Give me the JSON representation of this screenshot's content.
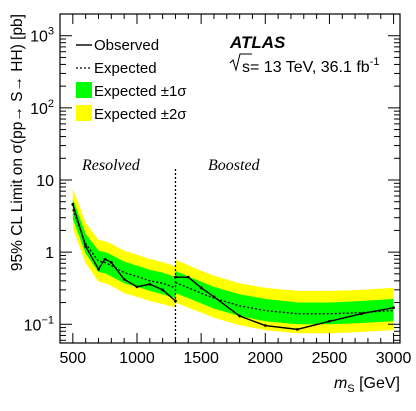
{
  "chart_data": {
    "type": "line",
    "xlabel": "m",
    "xlabel_sub": "S",
    "xlabel_unit": " [GeV]",
    "ylabel": "95% CL Limit on σ(pp→ S→ HH) [pb]",
    "xlim": [
      400,
      3050
    ],
    "ylim": [
      0.055,
      2000
    ],
    "y_scale": "log",
    "x_ticks": [
      500,
      1000,
      1500,
      2000,
      2500,
      3000
    ],
    "y_ticks": [
      {
        "value": 0.1,
        "base": "10",
        "exp": "−1"
      },
      {
        "value": 1,
        "label": "1"
      },
      {
        "value": 10,
        "label": "10"
      },
      {
        "value": 100,
        "base": "10",
        "exp": "2"
      },
      {
        "value": 1000,
        "base": "10",
        "exp": "3"
      }
    ],
    "atlas_label": "ATLAS",
    "energy_label": {
      "sqrt": "s",
      "main": "= 13 TeV, 36.1 fb",
      "sup": "-1"
    },
    "regions": [
      {
        "name": "Resolved",
        "x_center": 800
      },
      {
        "name": "Boosted",
        "x_center": 1800
      }
    ],
    "divider_x": 1300,
    "legend": {
      "position": "top-left",
      "items": [
        {
          "key": "observed",
          "label": "Observed"
        },
        {
          "key": "expected",
          "label": "Expected"
        },
        {
          "key": "band1",
          "label": "Expected ±1σ"
        },
        {
          "key": "band2",
          "label": "Expected ±2σ"
        }
      ]
    },
    "colors": {
      "band1": "#00ff00",
      "band2": "#ffff00",
      "line": "#000000"
    },
    "segments": [
      {
        "name": "Resolved",
        "x": [
          500,
          600,
          700,
          750,
          800,
          900,
          1000,
          1100,
          1200,
          1300
        ],
        "observed": [
          4.6,
          1.2,
          0.58,
          0.8,
          0.72,
          0.42,
          0.33,
          0.36,
          0.3,
          0.21
        ],
        "expected": [
          3.9,
          1.3,
          0.75,
          0.72,
          0.65,
          0.52,
          0.46,
          0.4,
          0.37,
          0.32
        ],
        "band1_low": [
          2.9,
          0.95,
          0.53,
          0.51,
          0.46,
          0.37,
          0.33,
          0.29,
          0.26,
          0.23
        ],
        "band1_high": [
          5.4,
          1.8,
          1.05,
          1.0,
          0.92,
          0.74,
          0.65,
          0.57,
          0.52,
          0.45
        ],
        "band2_low": [
          2.15,
          0.7,
          0.39,
          0.37,
          0.34,
          0.27,
          0.24,
          0.21,
          0.19,
          0.17
        ],
        "band2_high": [
          7.6,
          2.55,
          1.48,
          1.42,
          1.3,
          1.05,
          0.92,
          0.8,
          0.73,
          0.63
        ]
      },
      {
        "name": "Boosted",
        "x": [
          1300,
          1400,
          1500,
          1600,
          1800,
          2000,
          2250,
          2500,
          2750,
          3000
        ],
        "observed": [
          0.45,
          0.45,
          0.32,
          0.24,
          0.13,
          0.096,
          0.085,
          0.11,
          0.14,
          0.17
        ],
        "expected": [
          0.38,
          0.32,
          0.27,
          0.23,
          0.18,
          0.155,
          0.14,
          0.14,
          0.145,
          0.155
        ],
        "band1_low": [
          0.27,
          0.23,
          0.195,
          0.165,
          0.13,
          0.11,
          0.1,
          0.1,
          0.104,
          0.11
        ],
        "band1_high": [
          0.55,
          0.46,
          0.39,
          0.33,
          0.26,
          0.225,
          0.2,
          0.2,
          0.21,
          0.225
        ],
        "band2_low": [
          0.2,
          0.17,
          0.145,
          0.123,
          0.097,
          0.083,
          0.075,
          0.075,
          0.078,
          0.083
        ],
        "band2_high": [
          0.78,
          0.66,
          0.55,
          0.47,
          0.37,
          0.32,
          0.29,
          0.29,
          0.3,
          0.32
        ]
      }
    ]
  }
}
